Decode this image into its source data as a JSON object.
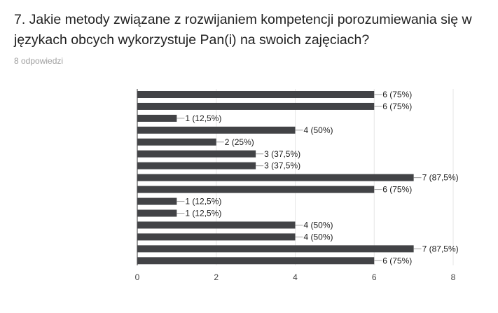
{
  "question": {
    "title": "7. Jakie metody związane z rozwijaniem kompetencji porozumiewania się w językach obcych wykorzystuje Pan(i) na swoich zajęciach?",
    "responses": "8 odpowiedzi"
  },
  "colors": {
    "bar": "#424346",
    "grid": "#e6e6e6",
    "axis": "#333333",
    "label_line": "#9e9e9e"
  },
  "chart_data": {
    "type": "bar",
    "orientation": "horizontal",
    "title": "",
    "xlabel": "",
    "ylabel": "",
    "xlim": [
      0,
      8
    ],
    "xticks": [
      0,
      2,
      4,
      6,
      8
    ],
    "grid": true,
    "legend": "none",
    "categories": [
      "",
      "",
      "",
      "",
      "",
      "",
      "",
      "",
      "",
      "",
      "",
      "",
      "",
      "",
      ""
    ],
    "values": [
      6,
      6,
      1,
      4,
      2,
      3,
      3,
      7,
      6,
      1,
      1,
      4,
      4,
      7,
      6
    ],
    "labels": [
      "6 (75%)",
      "6 (75%)",
      "1 (12,5%)",
      "4 (50%)",
      "2 (25%)",
      "3 (37,5%)",
      "3 (37,5%)",
      "7 (87,5%)",
      "6 (75%)",
      "1 (12,5%)",
      "1 (12,5%)",
      "4 (50%)",
      "4 (50%)",
      "7 (87,5%)",
      "6 (75%)"
    ]
  }
}
